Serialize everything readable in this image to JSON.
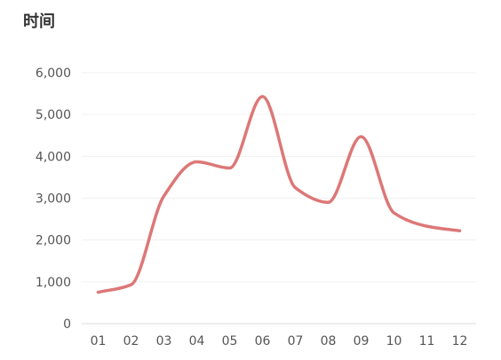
{
  "chart_data": {
    "type": "line",
    "title": "时间",
    "xlabel": "",
    "ylabel": "",
    "categories": [
      "01",
      "02",
      "03",
      "04",
      "05",
      "06",
      "07",
      "08",
      "09",
      "10",
      "11",
      "12"
    ],
    "series": [
      {
        "values": [
          750,
          930,
          3050,
          3870,
          3720,
          5430,
          3250,
          2900,
          4470,
          2650,
          2330,
          2220
        ]
      }
    ],
    "ylim": [
      0,
      6000
    ],
    "y_ticks": [
      "0",
      "1,000",
      "2,000",
      "3,000",
      "4,000",
      "5,000",
      "6,000"
    ],
    "grid": true,
    "smooth": true,
    "colors": {
      "line": "#dd7777",
      "grid": "#f0f0f0",
      "axis": "#dddddd"
    }
  }
}
